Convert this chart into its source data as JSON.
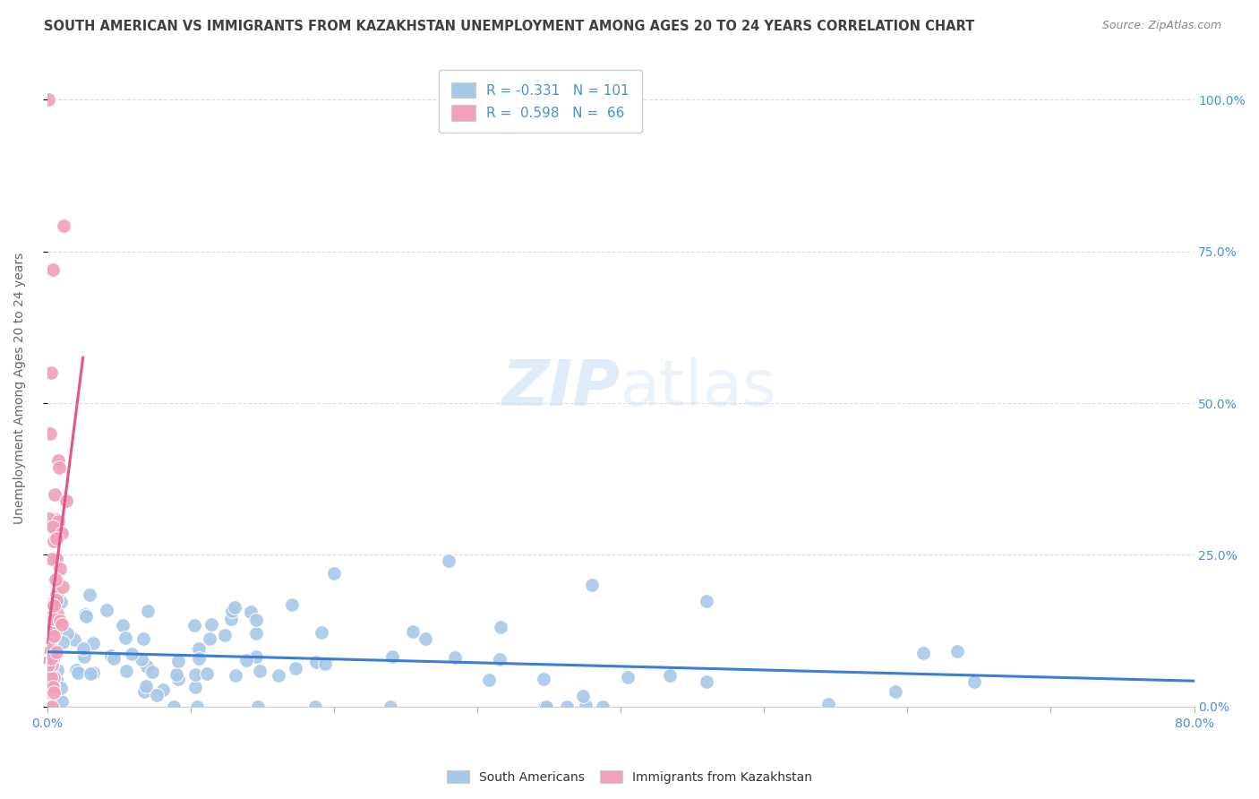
{
  "title": "SOUTH AMERICAN VS IMMIGRANTS FROM KAZAKHSTAN UNEMPLOYMENT AMONG AGES 20 TO 24 YEARS CORRELATION CHART",
  "source": "Source: ZipAtlas.com",
  "ylabel": "Unemployment Among Ages 20 to 24 years",
  "yticks": [
    "0.0%",
    "25.0%",
    "50.0%",
    "75.0%",
    "100.0%"
  ],
  "ytick_vals": [
    0.0,
    0.25,
    0.5,
    0.75,
    1.0
  ],
  "legend_label1": "South Americans",
  "legend_label2": "Immigrants from Kazakhstan",
  "r1": -0.331,
  "n1": 101,
  "r2": 0.598,
  "n2": 66,
  "blue_color": "#a8c8e8",
  "pink_color": "#f0a0b8",
  "blue_line_color": "#3a7fd5",
  "pink_line_color": "#e05880",
  "pink_dashed_color": "#e8a0b8",
  "watermark_zip": "ZIP",
  "watermark_atlas": "atlas",
  "background_color": "#ffffff",
  "title_color": "#404040",
  "title_fontsize": 10.5,
  "source_fontsize": 9,
  "axis_label_color": "#4a90d9",
  "seed": 99
}
